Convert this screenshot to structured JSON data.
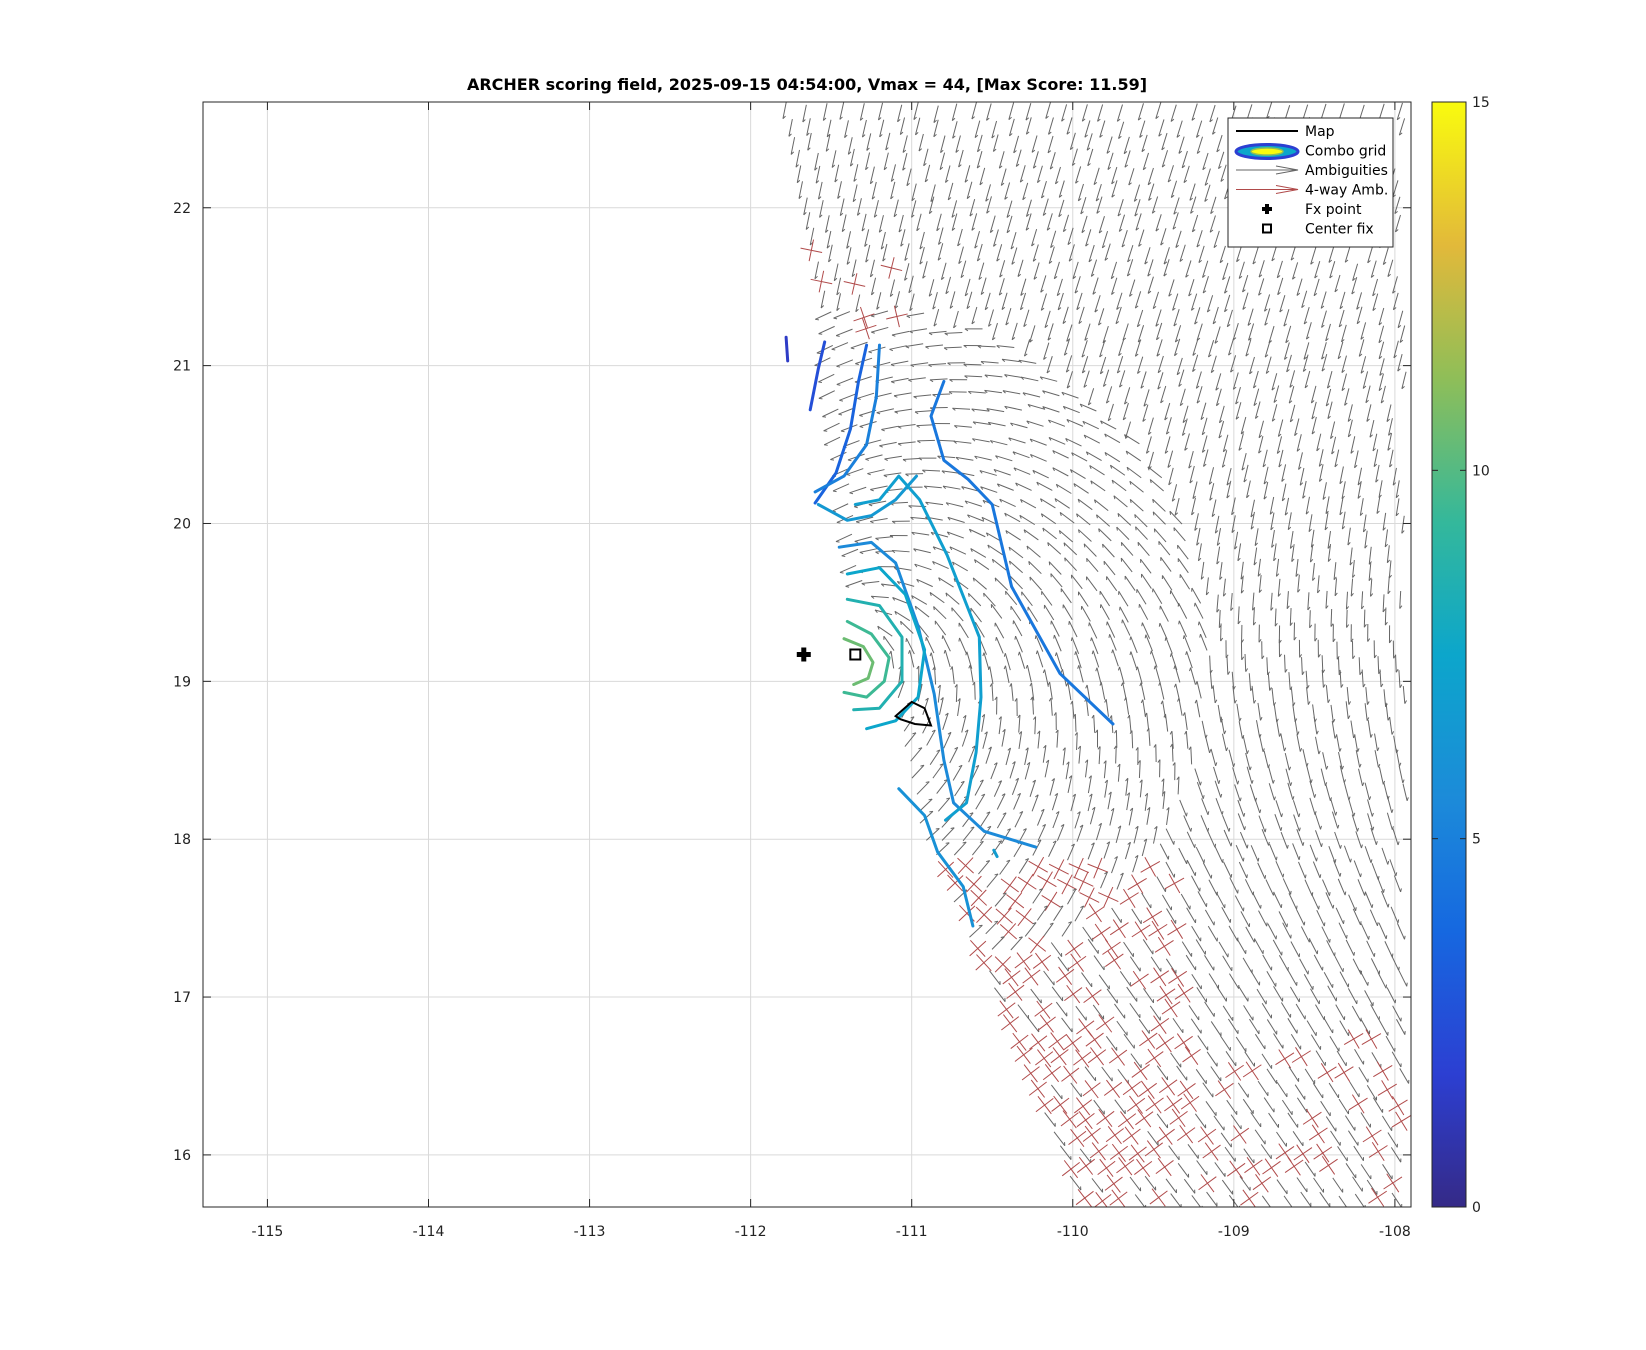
{
  "chart_data": {
    "type": "contour",
    "title": "ARCHER scoring field, 2025-09-15 04:54:00, Vmax = 44, [Max Score: 11.59]",
    "xlim": [
      -115.4,
      -107.9
    ],
    "ylim": [
      15.67,
      22.67
    ],
    "xticks": [
      -115,
      -114,
      -113,
      -112,
      -111,
      -110,
      -109,
      -108
    ],
    "yticks": [
      16,
      17,
      18,
      19,
      20,
      21,
      22
    ],
    "xtick_labels": [
      "-115",
      "-114",
      "-113",
      "-112",
      "-111",
      "-110",
      "-109",
      "-108"
    ],
    "ytick_labels": [
      "16",
      "17",
      "18",
      "19",
      "20",
      "21",
      "22"
    ],
    "grid": true,
    "legend_position": "top-right",
    "legend": [
      {
        "label": "Map",
        "kind": "line"
      },
      {
        "label": "Combo grid",
        "kind": "ellipse"
      },
      {
        "label": "Ambiguities",
        "kind": "gray-arrow"
      },
      {
        "label": "4-way Amb.",
        "kind": "red-arrow"
      },
      {
        "label": "Fx point",
        "kind": "plus"
      },
      {
        "label": "Center fix",
        "kind": "square"
      }
    ],
    "colorbar": {
      "min": 0,
      "max": 15,
      "ticks": [
        0,
        5,
        10,
        15
      ],
      "tick_labels": [
        "0",
        "5",
        "10",
        "15"
      ],
      "colormap": "parula"
    },
    "fx_point": {
      "lon": -111.67,
      "lat": 19.17
    },
    "center_fix": {
      "lon": -111.35,
      "lat": 19.17
    },
    "map_outline": [
      [
        -111.1,
        18.78
      ],
      [
        -111.0,
        18.87
      ],
      [
        -110.92,
        18.83
      ],
      [
        -110.88,
        18.72
      ],
      [
        -110.98,
        18.73
      ],
      [
        -111.07,
        18.76
      ]
    ],
    "contours": [
      {
        "level": 1.5,
        "points": [
          [
            -111.78,
            21.18
          ],
          [
            -111.77,
            21.03
          ]
        ]
      },
      {
        "level": 2.5,
        "points": [
          [
            -111.54,
            21.15
          ],
          [
            -111.58,
            20.98
          ],
          [
            -111.63,
            20.72
          ]
        ]
      },
      {
        "level": 3.5,
        "points": [
          [
            -111.28,
            21.13
          ],
          [
            -111.33,
            20.9
          ],
          [
            -111.38,
            20.6
          ],
          [
            -111.47,
            20.32
          ],
          [
            -111.6,
            20.13
          ]
        ]
      },
      {
        "level": 4.5,
        "points": [
          [
            -110.8,
            20.9
          ],
          [
            -110.88,
            20.68
          ],
          [
            -110.8,
            20.4
          ],
          [
            -110.65,
            20.28
          ],
          [
            -110.5,
            20.12
          ],
          [
            -110.38,
            19.6
          ],
          [
            -110.08,
            19.05
          ],
          [
            -109.75,
            18.73
          ]
        ]
      },
      {
        "level": 5,
        "points": [
          [
            -111.2,
            21.13
          ],
          [
            -111.22,
            20.8
          ],
          [
            -111.28,
            20.5
          ],
          [
            -111.42,
            20.3
          ],
          [
            -111.6,
            20.2
          ]
        ]
      },
      {
        "level": 5.5,
        "points": [
          [
            -111.45,
            19.85
          ],
          [
            -111.25,
            19.88
          ],
          [
            -111.1,
            19.75
          ],
          [
            -110.96,
            19.35
          ],
          [
            -110.86,
            18.92
          ],
          [
            -110.8,
            18.5
          ],
          [
            -110.74,
            18.23
          ],
          [
            -110.55,
            18.05
          ],
          [
            -110.23,
            17.95
          ]
        ]
      },
      {
        "level": 6,
        "points": [
          [
            -111.08,
            18.32
          ],
          [
            -110.92,
            18.15
          ],
          [
            -110.84,
            17.92
          ],
          [
            -110.68,
            17.7
          ],
          [
            -110.62,
            17.45
          ]
        ]
      },
      {
        "level": 6.5,
        "points": [
          [
            -111.58,
            20.12
          ],
          [
            -111.4,
            20.02
          ],
          [
            -111.25,
            20.05
          ],
          [
            -111.1,
            20.15
          ],
          [
            -110.97,
            20.3
          ]
        ]
      },
      {
        "level": 7,
        "points": [
          [
            -111.35,
            20.12
          ],
          [
            -111.2,
            20.15
          ],
          [
            -111.08,
            20.3
          ],
          [
            -110.95,
            20.15
          ],
          [
            -110.78,
            19.8
          ],
          [
            -110.58,
            19.28
          ],
          [
            -110.57,
            18.9
          ],
          [
            -110.6,
            18.55
          ],
          [
            -110.66,
            18.23
          ],
          [
            -110.79,
            18.12
          ]
        ]
      },
      {
        "level": 7.5,
        "points": [
          [
            -111.4,
            19.68
          ],
          [
            -111.2,
            19.72
          ],
          [
            -111.04,
            19.55
          ],
          [
            -110.92,
            19.2
          ],
          [
            -110.96,
            18.9
          ],
          [
            -111.1,
            18.75
          ],
          [
            -111.28,
            18.7
          ]
        ]
      },
      {
        "level": 8.5,
        "points": [
          [
            -111.4,
            19.52
          ],
          [
            -111.2,
            19.48
          ],
          [
            -111.06,
            19.28
          ],
          [
            -111.06,
            19.0
          ],
          [
            -111.2,
            18.83
          ],
          [
            -111.36,
            18.82
          ]
        ]
      },
      {
        "level": 9.5,
        "points": [
          [
            -111.4,
            19.38
          ],
          [
            -111.25,
            19.3
          ],
          [
            -111.14,
            19.15
          ],
          [
            -111.17,
            19.0
          ],
          [
            -111.28,
            18.9
          ],
          [
            -111.42,
            18.93
          ]
        ]
      },
      {
        "level": 10.5,
        "points": [
          [
            -111.42,
            19.27
          ],
          [
            -111.3,
            19.22
          ],
          [
            -111.24,
            19.12
          ],
          [
            -111.27,
            19.02
          ],
          [
            -111.36,
            18.98
          ]
        ]
      },
      {
        "level": 6.8,
        "points": [
          [
            -110.49,
            17.93
          ],
          [
            -110.47,
            17.89
          ]
        ]
      }
    ]
  }
}
